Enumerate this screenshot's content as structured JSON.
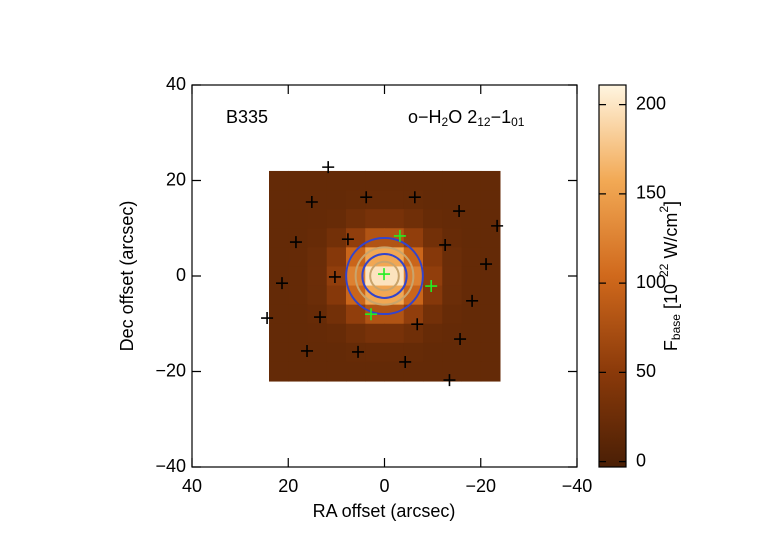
{
  "chart_data": {
    "type": "heatmap",
    "annotations": [
      "B335",
      [
        "o−H",
        "2",
        "O 2",
        "12",
        "−1",
        "01"
      ]
    ],
    "xlabel": "RA offset (arcsec)",
    "ylabel": "Dec offset (arcsec)",
    "colorbar_label": [
      "F",
      "base",
      " [10",
      "−22",
      " W/cm",
      "2",
      "]"
    ],
    "xlim": [
      40,
      -40
    ],
    "xticks": [
      40,
      20,
      0,
      {
        "value": -20,
        "label": "−20"
      },
      {
        "value": -40,
        "label": "−40"
      }
    ],
    "ylim": [
      -40,
      40
    ],
    "yticks": [
      {
        "value": -40,
        "label": "−40"
      },
      {
        "value": -20,
        "label": "−20"
      },
      0,
      20,
      40
    ],
    "clim": [
      -3,
      211
    ],
    "cticks": [
      0,
      50,
      100,
      150,
      200
    ],
    "colormap": [
      "#4a1f05",
      "#8b3a0a",
      "#d0691c",
      "#f2a955",
      "#fff5e0"
    ],
    "x": [
      22,
      18,
      14,
      10,
      6,
      2,
      -2,
      -6,
      -10,
      -14,
      -18,
      -22
    ],
    "y": [
      20,
      16,
      12,
      8,
      4,
      0,
      -4,
      -8,
      -12,
      -16,
      -20
    ],
    "z": [
      [
        18,
        18,
        18,
        18,
        18,
        18,
        18,
        18,
        18,
        18,
        18,
        18
      ],
      [
        18,
        18,
        18,
        18.5,
        20,
        21,
        21,
        20,
        18.5,
        18,
        18,
        18
      ],
      [
        18,
        18,
        19,
        21,
        28,
        35,
        35,
        28,
        21,
        19,
        18,
        18
      ],
      [
        18,
        18,
        21,
        31,
        55,
        80,
        80,
        55,
        31,
        21,
        18,
        18
      ],
      [
        18,
        19,
        24,
        46,
        99,
        156,
        156,
        99,
        46,
        24,
        19,
        18
      ],
      [
        18,
        19,
        25,
        55,
        124,
        198,
        198,
        124,
        55,
        25,
        19,
        18
      ],
      [
        18,
        19,
        24,
        46,
        99,
        156,
        156,
        99,
        46,
        24,
        19,
        18
      ],
      [
        18,
        18,
        21,
        31,
        55,
        80,
        80,
        55,
        31,
        21,
        18,
        18
      ],
      [
        18,
        18,
        19,
        21,
        28,
        35,
        35,
        28,
        21,
        19,
        18,
        18
      ],
      [
        18,
        18,
        18,
        18.5,
        20,
        21,
        21,
        20,
        18.5,
        18,
        18,
        18
      ],
      [
        18,
        18,
        18,
        18,
        18,
        18,
        18,
        18,
        18,
        18,
        18,
        18
      ]
    ],
    "contours": [
      {
        "level": 90,
        "color": "#3344cc"
      },
      {
        "level": 124,
        "color": "#c9a46c"
      },
      {
        "level": 150,
        "color": "#3344cc"
      },
      {
        "level": 180,
        "color": "#c9a46c"
      }
    ],
    "series": [
      {
        "color": "#000000",
        "x": [
          11.7,
          15.1,
          3.8,
          -6.3,
          -15.5,
          -23.4,
          7.6,
          18.4,
          -12.6,
          -21.1,
          10.3,
          21.3,
          -18.2,
          24.4,
          13.4,
          -6.8,
          -15.7,
          16.1,
          5.5,
          -4.3,
          -13.5
        ],
        "values": [
          22.8,
          15.5,
          16.5,
          16.5,
          13.6,
          10.5,
          7.7,
          7.1,
          6.5,
          2.5,
          -0.2,
          -1.5,
          -5.2,
          -8.8,
          -8.6,
          -10.1,
          -13.2,
          -15.7,
          -15.9,
          -18.0,
          -21.8
        ]
      },
      {
        "color": "#22ee22",
        "x": [
          0.1,
          -3.2,
          -9.7,
          2.8
        ],
        "values": [
          0.4,
          8.4,
          -2.1,
          -8.0
        ]
      }
    ]
  }
}
